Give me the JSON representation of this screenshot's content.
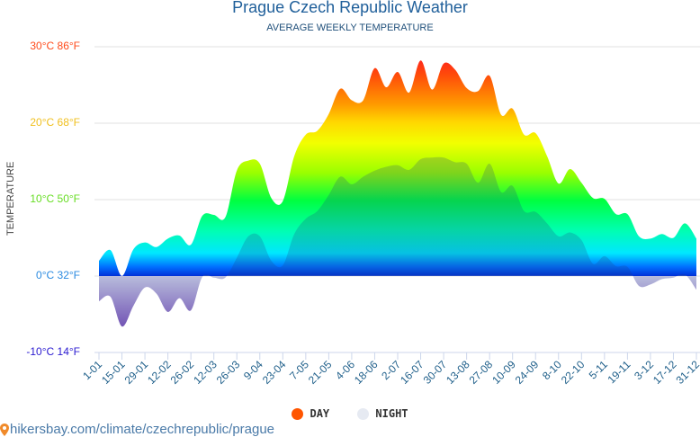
{
  "chart_data": {
    "type": "area",
    "title": "Prague Czech Republic Weather",
    "subtitle": "AVERAGE WEEKLY TEMPERATURE",
    "ylabel": "TEMPERATURE",
    "ylim": [
      -10,
      30
    ],
    "yticks": [
      {
        "value": 30,
        "label": "30°C 86°F",
        "color": "#ff4a1a"
      },
      {
        "value": 20,
        "label": "20°C 68°F",
        "color": "#f0c020"
      },
      {
        "value": 10,
        "label": "10°C 50°F",
        "color": "#66dd22"
      },
      {
        "value": 0,
        "label": "0°C 32°F",
        "color": "#2a8ae0"
      },
      {
        "value": -10,
        "label": "-10°C 14°F",
        "color": "#2a1ad0"
      }
    ],
    "xtick_labels": [
      "1-01",
      "15-01",
      "29-01",
      "12-02",
      "26-02",
      "12-03",
      "26-03",
      "9-04",
      "23-04",
      "7-05",
      "21-05",
      "4-06",
      "18-06",
      "2-07",
      "16-07",
      "30-07",
      "13-08",
      "27-08",
      "10-09",
      "24-09",
      "8-10",
      "22-10",
      "5-11",
      "19-11",
      "3-12",
      "17-12",
      "31-12"
    ],
    "grid": true,
    "legend_position": "bottom",
    "series": [
      {
        "name": "DAY",
        "color": "#ff5500",
        "values": [
          2.0,
          3.4,
          0,
          3.5,
          4.4,
          3.8,
          4.9,
          5.3,
          4.1,
          7.9,
          8.0,
          7.7,
          13.8,
          15.1,
          14.7,
          10.2,
          9.8,
          15.7,
          18.5,
          19.0,
          21.2,
          24.5,
          23.0,
          23.0,
          27.2,
          24.7,
          26.7,
          24.0,
          28.2,
          24.4,
          27.8,
          27.0,
          24.6,
          24.2,
          26.2,
          21.1,
          21.9,
          18.5,
          18.7,
          15.7,
          12.1,
          14.0,
          12.2,
          10.2,
          10.1,
          8.1,
          8.1,
          5.2,
          4.9,
          5.5,
          5.0,
          6.9,
          4.9
        ]
      },
      {
        "name": "NIGHT",
        "color": "#e6eaf2",
        "values": [
          -3.3,
          -2.7,
          -6.6,
          -3.9,
          -1.5,
          -2.3,
          -4.7,
          -2.9,
          -4.5,
          -0.1,
          -0.2,
          -0.2,
          2.4,
          5.2,
          5.2,
          2.0,
          1.4,
          5.5,
          7.5,
          8.5,
          10.6,
          13.0,
          12.0,
          13.0,
          13.8,
          14.3,
          14.5,
          13.9,
          15.3,
          15.5,
          15.5,
          14.9,
          14.7,
          12.2,
          14.7,
          11.0,
          11.8,
          8.5,
          8.4,
          6.9,
          5.2,
          5.7,
          4.7,
          1.6,
          2.6,
          1.3,
          1.2,
          -1.3,
          -1.1,
          -0.4,
          -0.2,
          0.2,
          -1.8
        ]
      }
    ]
  },
  "footer": {
    "url_text": "hikersbay.com/climate/czechrepublic/prague",
    "icon": "map-pin-icon"
  }
}
